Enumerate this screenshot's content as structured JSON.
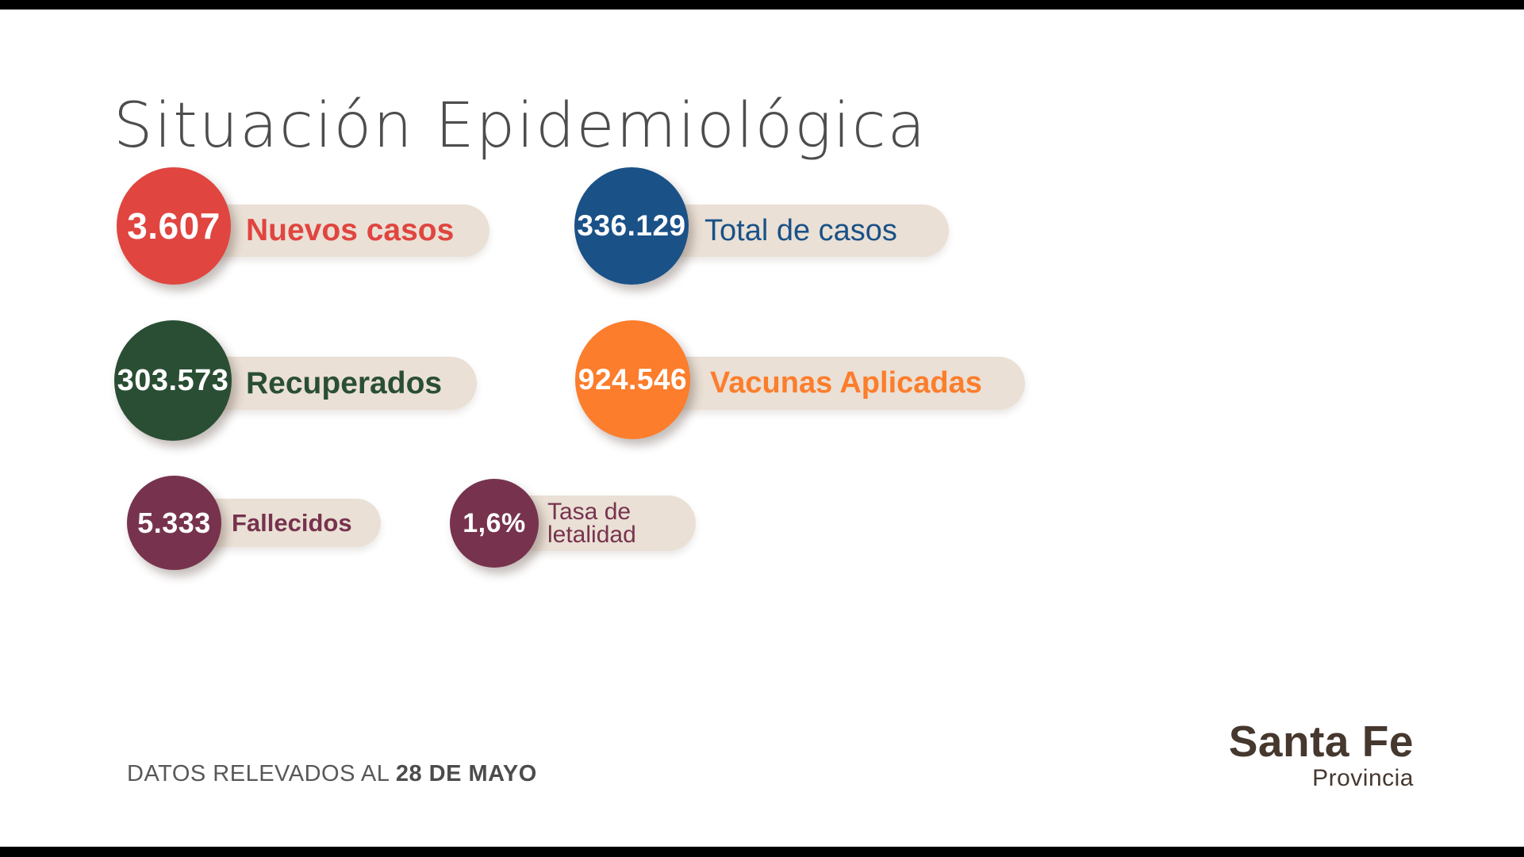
{
  "page": {
    "title": "Situación Epidemiológica"
  },
  "stats": [
    {
      "value": "3.607",
      "label": "Nuevos casos",
      "color": "#e04540",
      "numeric": 3607
    },
    {
      "value": "336.129",
      "label": "Total de casos",
      "color": "#1a5187",
      "numeric": 336129
    },
    {
      "value": "303.573",
      "label": "Recuperados",
      "color": "#2a4e34",
      "numeric": 303573
    },
    {
      "value": "924.546",
      "label": "Vacunas Aplicadas",
      "color": "#fc7d2c",
      "numeric": 924546
    },
    {
      "value": "5.333",
      "label": "Fallecidos",
      "color": "#77334e",
      "numeric": 5333
    },
    {
      "value": "1,6%",
      "label": "Tasa de\nletalidad",
      "color": "#77334e",
      "numeric": 1.6
    }
  ],
  "footer": {
    "prefix": "DATOS RELEVADOS AL ",
    "date": "28 DE MAYO"
  },
  "logo": {
    "line1": "Santa Fe",
    "line2": "Provincia",
    "color": "#46382e"
  },
  "colors": {
    "pill_background": "#eae0d5",
    "title_text": "#4d4d4d",
    "footer_text": "#58585a",
    "value_text": "#ffffff"
  },
  "chart_data": {
    "type": "table",
    "title": "Situación Epidemiológica",
    "categories": [
      "Nuevos casos",
      "Total de casos",
      "Recuperados",
      "Vacunas Aplicadas",
      "Fallecidos",
      "Tasa de letalidad"
    ],
    "values": [
      3607,
      336129,
      303573,
      924546,
      5333,
      1.6
    ],
    "value_labels": [
      "3.607",
      "336.129",
      "303.573",
      "924.546",
      "5.333",
      "1,6%"
    ],
    "note": "DATOS RELEVADOS AL 28 DE MAYO",
    "source": "Santa Fe Provincia"
  }
}
